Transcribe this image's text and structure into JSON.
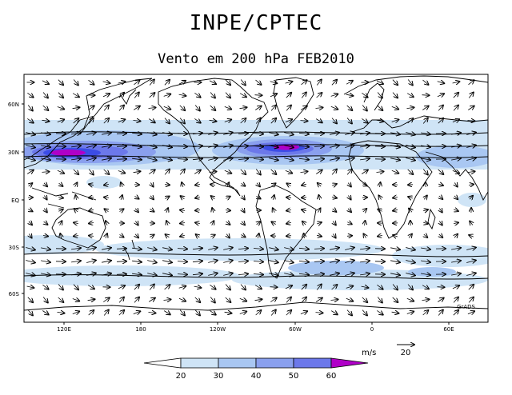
{
  "header": {
    "title": "INPE/CPTEC",
    "subtitle": "Vento em 200 hPa FEB2010"
  },
  "map": {
    "lat_labels": [
      "60N",
      "30N",
      "EQ",
      "30S",
      "60S"
    ],
    "lon_labels": [
      "120E",
      "180",
      "120W",
      "60W",
      "0",
      "60E"
    ],
    "watermark": "GrADS",
    "fill_color": "#cfe4f6"
  },
  "vector_key": {
    "unit": "m/s",
    "value": "20"
  },
  "colorbar": {
    "ticks": [
      "20",
      "30",
      "40",
      "50",
      "60"
    ],
    "colors": [
      "#ffffff",
      "#cfe4f6",
      "#a9c7f2",
      "#8aa0ee",
      "#6c78ea",
      "#3c4ce6",
      "#b000c8"
    ]
  }
}
